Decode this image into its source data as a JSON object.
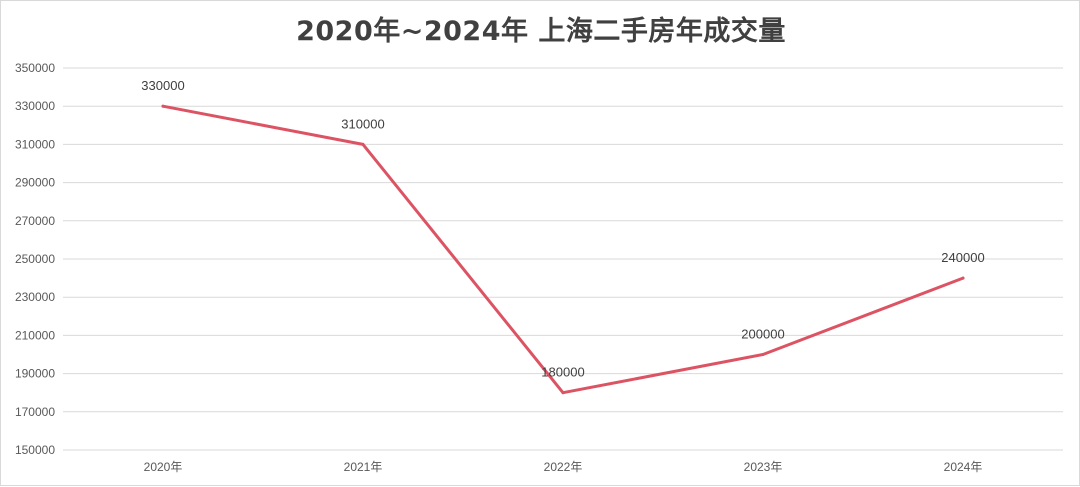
{
  "chart_data": {
    "type": "line",
    "title": "2020年~2024年 上海二手房年成交量",
    "categories": [
      "2020年",
      "2021年",
      "2022年",
      "2023年",
      "2024年"
    ],
    "values": [
      330000,
      310000,
      180000,
      200000,
      240000
    ],
    "data_labels": [
      "330000",
      "310000",
      "180000",
      "200000",
      "240000"
    ],
    "y_ticks": [
      "150000",
      "170000",
      "190000",
      "210000",
      "230000",
      "250000",
      "270000",
      "290000",
      "310000",
      "330000",
      "350000"
    ],
    "ylim": [
      150000,
      350000
    ],
    "grid": true,
    "legend": "none",
    "line_color": "#dc5463"
  }
}
